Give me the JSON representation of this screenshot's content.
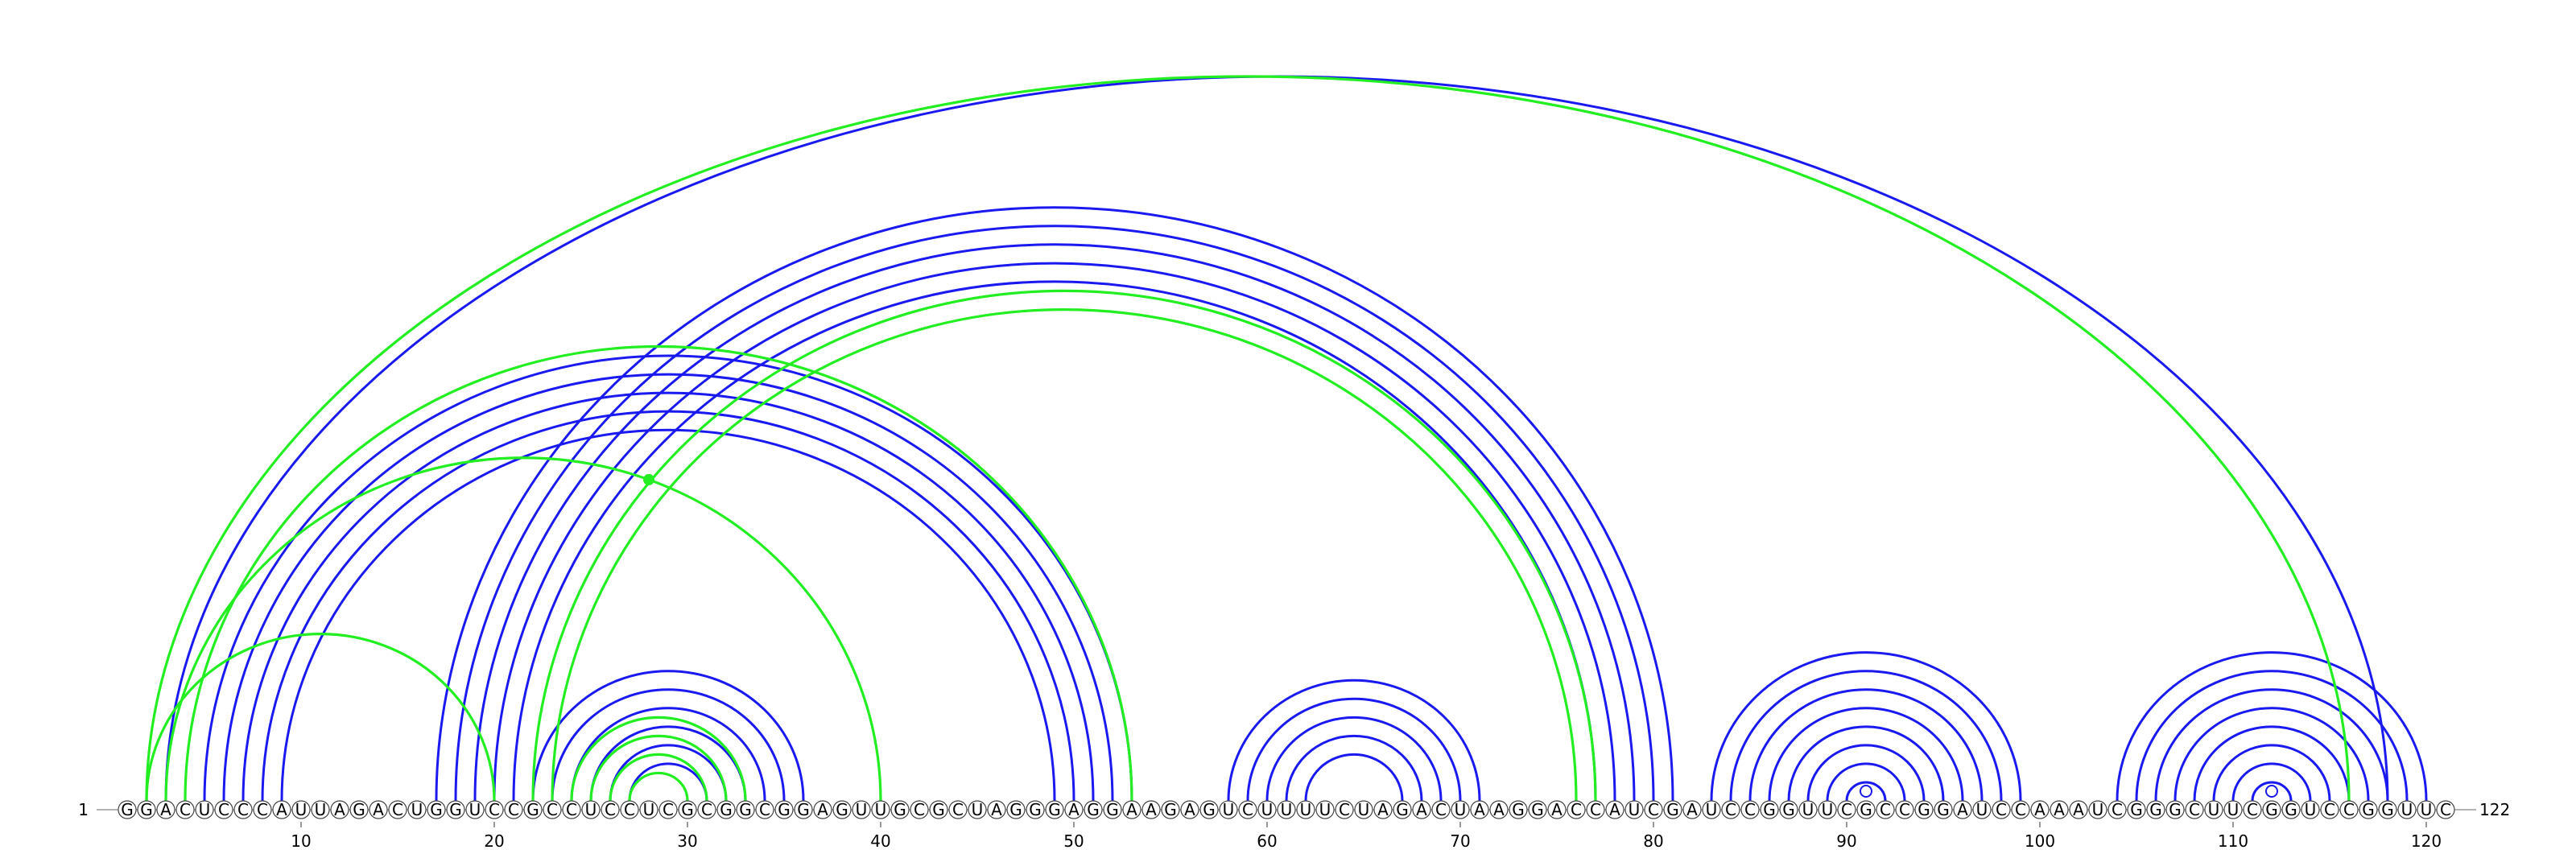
{
  "sequence": "GGACUCCCAUUAGACUGGUCCGCCUCCUCGCGGCGGAGUUGCGCUAGGGAGGAAGAGUCUUUUCUAGACUAAGGACCAUCGAUCCGGUUCGCCGGAUCCAAAUCGGGCUUCGGUCCGGUUC",
  "start_label": "1",
  "end_label": "122",
  "axis_ticks": [
    10,
    20,
    30,
    40,
    50,
    60,
    70,
    80,
    90,
    100,
    110,
    120
  ],
  "colors": {
    "blue_arcs": "#1a1af0",
    "green_arcs": "#22ee22"
  },
  "blue_pairs": [
    [
      3,
      118
    ],
    [
      5,
      53
    ],
    [
      6,
      52
    ],
    [
      7,
      51
    ],
    [
      8,
      50
    ],
    [
      9,
      49
    ],
    [
      17,
      81
    ],
    [
      18,
      80
    ],
    [
      19,
      79
    ],
    [
      20,
      78
    ],
    [
      21,
      77
    ],
    [
      22,
      36
    ],
    [
      23,
      35
    ],
    [
      24,
      34
    ],
    [
      25,
      33
    ],
    [
      26,
      32
    ],
    [
      27,
      31
    ],
    [
      58,
      71
    ],
    [
      59,
      70
    ],
    [
      60,
      69
    ],
    [
      61,
      68
    ],
    [
      62,
      67
    ],
    [
      83,
      99
    ],
    [
      84,
      98
    ],
    [
      85,
      97
    ],
    [
      86,
      96
    ],
    [
      87,
      95
    ],
    [
      88,
      94
    ],
    [
      89,
      93
    ],
    [
      90,
      92
    ],
    [
      104,
      120
    ],
    [
      105,
      119
    ],
    [
      106,
      118
    ],
    [
      107,
      117
    ],
    [
      108,
      116
    ],
    [
      109,
      115
    ],
    [
      110,
      114
    ],
    [
      111,
      113
    ]
  ],
  "green_pairs": [
    [
      2,
      116
    ],
    [
      2,
      20
    ],
    [
      3,
      40
    ],
    [
      4,
      53
    ],
    [
      22,
      77
    ],
    [
      23,
      76
    ],
    [
      24,
      33
    ],
    [
      25,
      32
    ],
    [
      26,
      31
    ],
    [
      27,
      30
    ]
  ],
  "loop_markers": [
    91,
    112
  ],
  "dot_marker": 28
}
